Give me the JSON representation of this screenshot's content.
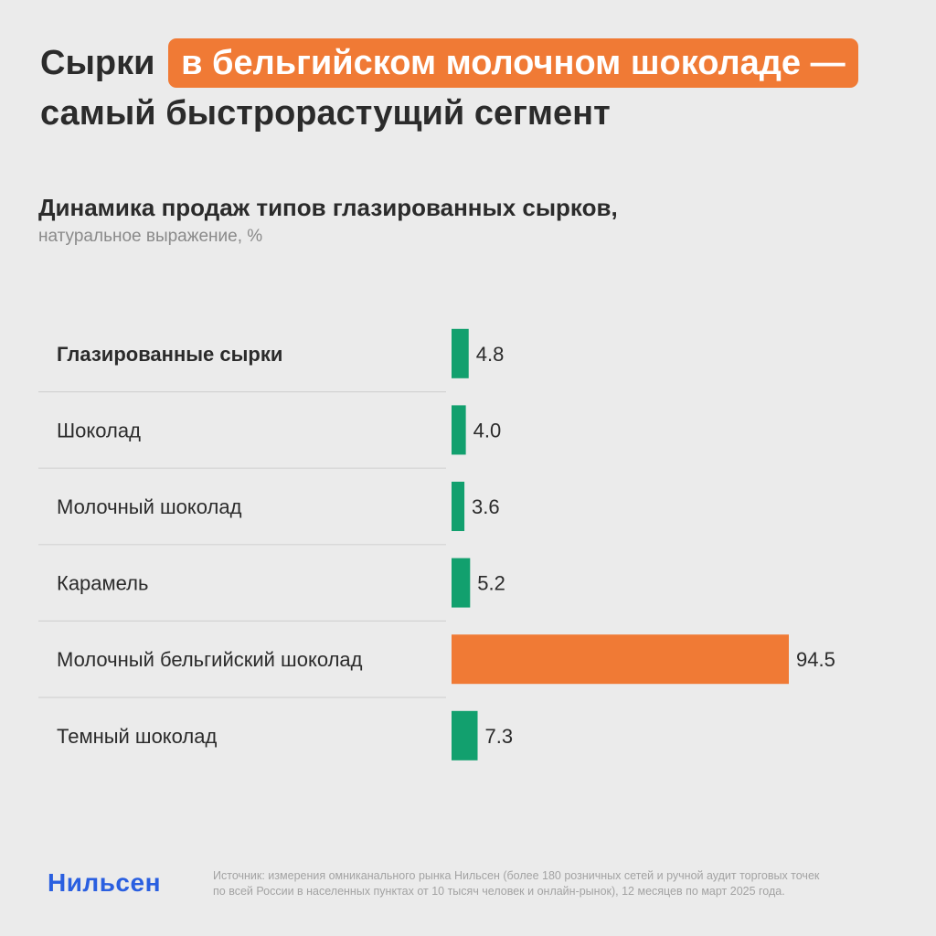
{
  "headline": {
    "part1": "Сырки",
    "highlight": "в бельгийском молочном шоколаде —",
    "part2": "самый быстрорастущий сегмент"
  },
  "chart_data": {
    "type": "bar",
    "orientation": "horizontal",
    "title": "Динамика продаж типов глазированных сырков,",
    "subtitle": "натуральное выражение, %",
    "categories": [
      "Глазированные сырки",
      "Шоколад",
      "Молочный шоколад",
      "Карамель",
      "Молочный бельгийский шоколад",
      "Темный шоколад"
    ],
    "values": [
      4.8,
      4.0,
      3.6,
      5.2,
      94.5,
      7.3
    ],
    "value_labels": [
      "4.8",
      "4.0",
      "3.6",
      "5.2",
      "94.5",
      "7.3"
    ],
    "bold_categories": [
      0
    ],
    "highlight_index": 4,
    "colors": {
      "default": "#12a06e",
      "highlight": "#f07a35",
      "separator": "#d3d3d3"
    },
    "xlim": [
      0,
      94.5
    ],
    "grid": false,
    "legend": "none"
  },
  "footer": {
    "logo": "Нильсен",
    "source_line1": "Источник: измерения омниканального рынка Нильсен (более 180 розничных сетей и ручной аудит торговых точек",
    "source_line2": "по всей России в населенных пунктах от 10 тысяч человек и онлайн-рынок), 12 месяцев по март 2025 года."
  }
}
